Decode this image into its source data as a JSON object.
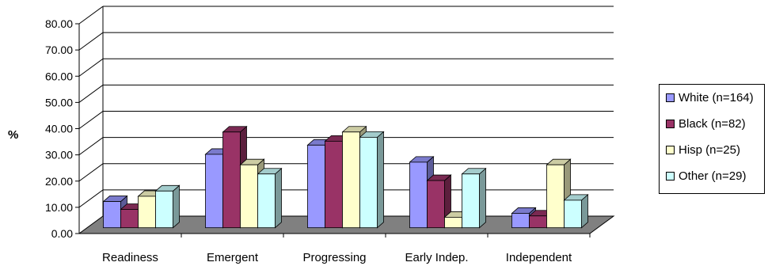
{
  "chart_data": {
    "type": "bar",
    "title": "",
    "xlabel": "",
    "ylabel": "%",
    "ylim": [
      0,
      80
    ],
    "yticks": [
      "0.00",
      "10.00",
      "20.00",
      "30.00",
      "40.00",
      "50.00",
      "60.00",
      "70.00",
      "80.00"
    ],
    "categories": [
      "Readiness",
      "Emergent",
      "Progressing",
      "Early Indep.",
      "Independent"
    ],
    "grid": true,
    "legend_position": "right",
    "series": [
      {
        "name": "White (n=164)",
        "color": "#9999ff",
        "values": [
          10.0,
          28.0,
          31.5,
          25.0,
          5.5
        ]
      },
      {
        "name": "Black (n=82)",
        "color": "#993366",
        "values": [
          7.0,
          36.5,
          33.0,
          18.0,
          4.5
        ]
      },
      {
        "name": "Hisp (n=25)",
        "color": "#ffffcc",
        "values": [
          12.0,
          24.0,
          36.5,
          4.0,
          24.0
        ]
      },
      {
        "name": "Other (n=29)",
        "color": "#ccffff",
        "values": [
          14.0,
          20.5,
          34.5,
          20.5,
          10.5
        ]
      }
    ]
  }
}
